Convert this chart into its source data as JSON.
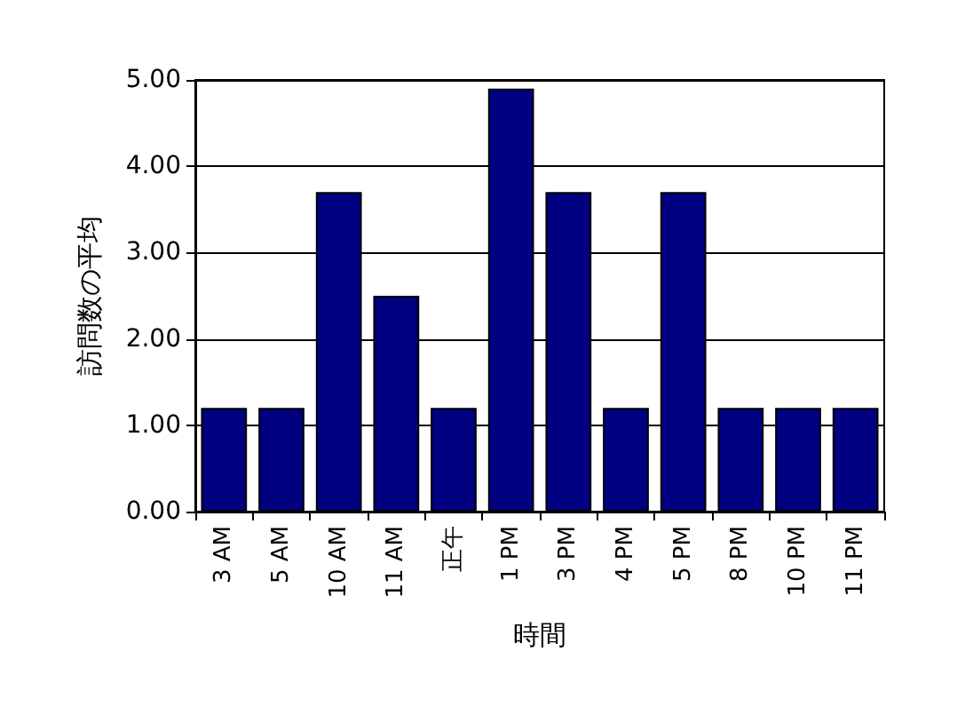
{
  "chart_data": {
    "type": "bar",
    "xlabel": "時間",
    "ylabel": "訪問数の平均",
    "categories": [
      "3 AM",
      "5 AM",
      "10 AM",
      "11 AM",
      "正午",
      "1 PM",
      "3 PM",
      "4 PM",
      "5 PM",
      "8 PM",
      "10 PM",
      "11 PM"
    ],
    "values": [
      1.2,
      1.2,
      3.7,
      2.5,
      1.2,
      4.9,
      3.7,
      1.2,
      3.7,
      1.2,
      1.2,
      1.2
    ],
    "color": "#000080",
    "ylim": [
      0,
      5
    ],
    "yticks": [
      {
        "value": 0,
        "label": "0.00"
      },
      {
        "value": 1,
        "label": "1.00"
      },
      {
        "value": 2,
        "label": "2.00"
      },
      {
        "value": 3,
        "label": "3.00"
      },
      {
        "value": 4,
        "label": "4.00"
      },
      {
        "value": 5,
        "label": "5.00"
      }
    ],
    "grid": "y"
  }
}
